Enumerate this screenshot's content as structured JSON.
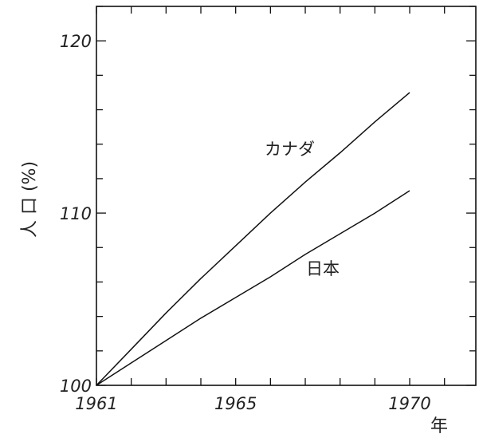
{
  "chart_data": {
    "type": "line",
    "xlabel": "年",
    "ylabel": "人 口 (%)",
    "xlim": [
      1961,
      1971.9
    ],
    "ylim": [
      100,
      122
    ],
    "xticks_major": [
      1961,
      1965,
      1970
    ],
    "xtick_labels": [
      "1961",
      "1965",
      "1970"
    ],
    "yticks_major": [
      100,
      110,
      120
    ],
    "ytick_labels": [
      "100",
      "110",
      "120"
    ],
    "grid": false,
    "series": [
      {
        "name": "カナダ",
        "x": [
          1961,
          1962,
          1963,
          1964,
          1965,
          1966,
          1967,
          1968,
          1969,
          1970
        ],
        "y": [
          100,
          102.1,
          104.2,
          106.2,
          108.1,
          110.0,
          111.8,
          113.5,
          115.3,
          117.0
        ]
      },
      {
        "name": "日本",
        "x": [
          1961,
          1962,
          1963,
          1964,
          1965,
          1966,
          1967,
          1968,
          1969,
          1970
        ],
        "y": [
          100,
          101.3,
          102.6,
          103.9,
          105.1,
          106.3,
          107.6,
          108.8,
          110.0,
          111.3
        ]
      }
    ]
  }
}
